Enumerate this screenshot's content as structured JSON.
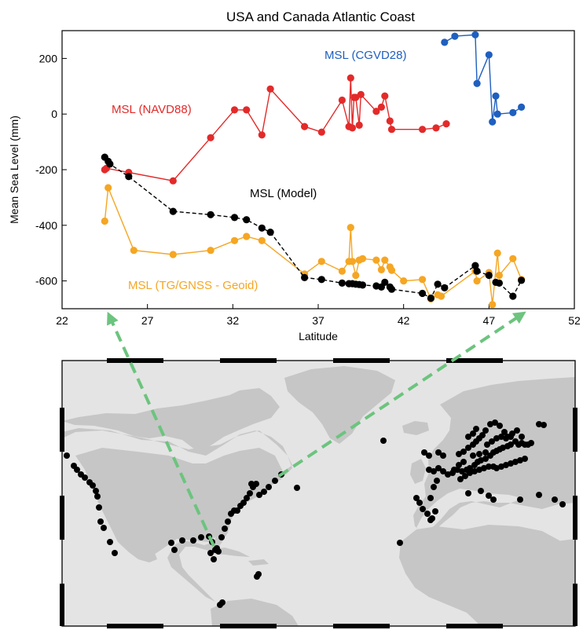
{
  "chart_data": {
    "type": "line",
    "title": "USA and Canada Atlantic Coast",
    "xlabel": "Latitude",
    "ylabel": "Mean Sea Level (mm)",
    "xlim": [
      22,
      52
    ],
    "ylim": [
      -700,
      300
    ],
    "xticks": [
      22,
      27,
      32,
      37,
      42,
      47,
      52
    ],
    "yticks": [
      -600,
      -400,
      -200,
      0,
      200
    ],
    "series": [
      {
        "name": "MSL (CGVD28)",
        "color": "#1f5fbf",
        "line_style": "solid",
        "points": [
          [
            44.4,
            258
          ],
          [
            45.0,
            280
          ],
          [
            46.2,
            285
          ],
          [
            46.3,
            110
          ],
          [
            47.0,
            213
          ],
          [
            47.2,
            -28
          ],
          [
            47.4,
            65
          ],
          [
            47.5,
            0
          ],
          [
            48.4,
            5
          ],
          [
            48.9,
            25
          ]
        ]
      },
      {
        "name": "MSL (NAVD88)",
        "color": "#e32a2a",
        "line_style": "solid",
        "points": [
          [
            24.5,
            -200
          ],
          [
            24.6,
            -195
          ],
          [
            25.9,
            -210
          ],
          [
            28.5,
            -240
          ],
          [
            30.7,
            -85
          ],
          [
            32.1,
            15
          ],
          [
            32.8,
            15
          ],
          [
            33.7,
            -75
          ],
          [
            34.2,
            90
          ],
          [
            36.2,
            -45
          ],
          [
            37.2,
            -65
          ],
          [
            38.4,
            50
          ],
          [
            38.8,
            -45
          ],
          [
            38.9,
            130
          ],
          [
            39.0,
            -50
          ],
          [
            39.1,
            60
          ],
          [
            39.2,
            60
          ],
          [
            39.4,
            -40
          ],
          [
            39.5,
            70
          ],
          [
            40.4,
            10
          ],
          [
            40.7,
            25
          ],
          [
            40.9,
            65
          ],
          [
            41.2,
            -25
          ],
          [
            41.3,
            -55
          ],
          [
            43.1,
            -55
          ],
          [
            43.9,
            -50
          ],
          [
            44.5,
            -35
          ]
        ]
      },
      {
        "name": "MSL (Model)",
        "color": "#000000",
        "line_style": "dashed",
        "points": [
          [
            24.5,
            -155
          ],
          [
            24.7,
            -170
          ],
          [
            24.8,
            -180
          ],
          [
            25.9,
            -225
          ],
          [
            28.5,
            -350
          ],
          [
            30.7,
            -362
          ],
          [
            32.1,
            -372
          ],
          [
            32.8,
            -380
          ],
          [
            33.7,
            -410
          ],
          [
            34.2,
            -425
          ],
          [
            36.2,
            -588
          ],
          [
            37.2,
            -595
          ],
          [
            38.4,
            -608
          ],
          [
            38.8,
            -610
          ],
          [
            39.0,
            -610
          ],
          [
            39.2,
            -612
          ],
          [
            39.4,
            -613
          ],
          [
            39.6,
            -615
          ],
          [
            40.4,
            -618
          ],
          [
            40.7,
            -622
          ],
          [
            40.9,
            -605
          ],
          [
            41.2,
            -622
          ],
          [
            41.3,
            -630
          ],
          [
            43.1,
            -645
          ],
          [
            43.6,
            -662
          ],
          [
            44.0,
            -612
          ],
          [
            44.4,
            -625
          ],
          [
            46.2,
            -545
          ],
          [
            46.3,
            -565
          ],
          [
            47.0,
            -580
          ],
          [
            47.4,
            -605
          ],
          [
            47.6,
            -608
          ],
          [
            48.4,
            -655
          ],
          [
            48.9,
            -598
          ]
        ]
      },
      {
        "name": "MSL (TG/GNSS - Geoid)",
        "color": "#f5a623",
        "line_style": "solid",
        "points": [
          [
            24.5,
            -385
          ],
          [
            24.7,
            -265
          ],
          [
            26.2,
            -490
          ],
          [
            28.5,
            -505
          ],
          [
            30.7,
            -490
          ],
          [
            32.1,
            -455
          ],
          [
            32.8,
            -440
          ],
          [
            33.7,
            -455
          ],
          [
            36.2,
            -575
          ],
          [
            37.2,
            -530
          ],
          [
            38.4,
            -565
          ],
          [
            38.8,
            -530
          ],
          [
            38.9,
            -408
          ],
          [
            39.0,
            -530
          ],
          [
            39.2,
            -580
          ],
          [
            39.4,
            -525
          ],
          [
            39.6,
            -520
          ],
          [
            40.4,
            -525
          ],
          [
            40.7,
            -560
          ],
          [
            40.9,
            -525
          ],
          [
            41.2,
            -550
          ],
          [
            41.3,
            -562
          ],
          [
            42.0,
            -600
          ],
          [
            43.1,
            -595
          ],
          [
            43.6,
            -665
          ],
          [
            44.0,
            -650
          ],
          [
            44.2,
            -655
          ],
          [
            46.2,
            -565
          ],
          [
            46.3,
            -600
          ],
          [
            47.0,
            -570
          ],
          [
            47.2,
            -685
          ],
          [
            47.5,
            -500
          ],
          [
            47.6,
            -580
          ],
          [
            48.4,
            -520
          ],
          [
            48.9,
            -595
          ]
        ]
      }
    ],
    "legend": "labels placed next to each series",
    "grid": false
  },
  "map": {
    "land_color": "#c6c6c6",
    "ocean_color": "#e4e4e4",
    "station_color": "#000000",
    "arrow_color": "#6cc47e"
  }
}
